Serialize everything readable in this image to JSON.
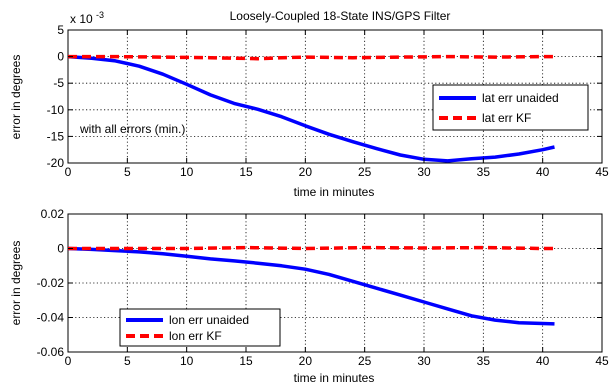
{
  "chart_data": [
    {
      "type": "line",
      "title": "Loosely-Coupled 18-State INS/GPS Filter",
      "xlabel": "time in minutes",
      "ylabel": "error in degrees",
      "y_multiplier": "x 10",
      "y_exponent": "-3",
      "xlim": [
        0,
        45
      ],
      "ylim": [
        -20,
        5
      ],
      "xticks": [
        "0",
        "5",
        "10",
        "15",
        "20",
        "25",
        "30",
        "35",
        "40",
        "45"
      ],
      "yticks": [
        "5",
        "0",
        "-5",
        "-10",
        "-15",
        "-20"
      ],
      "grid": true,
      "legend_position": "right",
      "annotation": "with all errors (min.)",
      "series": [
        {
          "name": "lat err unaided",
          "color": "#0000ff",
          "style": "solid",
          "x": [
            0,
            2,
            4,
            6,
            8,
            10,
            12,
            14,
            16,
            18,
            20,
            22,
            24,
            26,
            28,
            30,
            32,
            34,
            36,
            38,
            40,
            41
          ],
          "y": [
            0,
            -0.3,
            -0.8,
            -1.8,
            -3.3,
            -5.2,
            -7.2,
            -8.8,
            -9.9,
            -11.3,
            -13.0,
            -14.6,
            -16.0,
            -17.3,
            -18.5,
            -19.3,
            -19.6,
            -19.2,
            -18.9,
            -18.3,
            -17.5,
            -17.0
          ]
        },
        {
          "name": "lat err KF",
          "color": "#ff0000",
          "style": "dashed",
          "x": [
            0,
            4,
            8,
            12,
            16,
            18,
            20,
            24,
            28,
            32,
            36,
            40,
            41
          ],
          "y": [
            0,
            0,
            -0.1,
            -0.2,
            -0.4,
            -0.2,
            -0.1,
            -0.2,
            -0.1,
            0,
            -0.1,
            0,
            0
          ]
        }
      ]
    },
    {
      "type": "line",
      "title": "",
      "xlabel": "time in minutes",
      "ylabel": "error in degrees",
      "xlim": [
        0,
        45
      ],
      "ylim": [
        -0.06,
        0.02
      ],
      "xticks": [
        "0",
        "5",
        "10",
        "15",
        "20",
        "25",
        "30",
        "35",
        "40",
        "45"
      ],
      "yticks": [
        "0.02",
        "0",
        "-0.02",
        "-0.04",
        "-0.06"
      ],
      "grid": true,
      "legend_position": "bottom-left",
      "series": [
        {
          "name": "lon err unaided",
          "color": "#0000ff",
          "style": "solid",
          "x": [
            0,
            2,
            4,
            6,
            8,
            10,
            12,
            14,
            16,
            18,
            20,
            22,
            24,
            26,
            28,
            30,
            32,
            34,
            36,
            38,
            40,
            41
          ],
          "y": [
            0,
            -0.0005,
            -0.0012,
            -0.002,
            -0.003,
            -0.0045,
            -0.006,
            -0.0072,
            -0.0085,
            -0.01,
            -0.012,
            -0.015,
            -0.019,
            -0.023,
            -0.027,
            -0.031,
            -0.035,
            -0.039,
            -0.0415,
            -0.043,
            -0.0435,
            -0.0437
          ]
        },
        {
          "name": "lon err KF",
          "color": "#ff0000",
          "style": "dashed",
          "x": [
            0,
            5,
            10,
            15,
            20,
            25,
            30,
            35,
            40,
            41
          ],
          "y": [
            0,
            0,
            0,
            0.0005,
            0,
            0.0005,
            0.0003,
            0.0005,
            0,
            0
          ]
        }
      ]
    }
  ]
}
